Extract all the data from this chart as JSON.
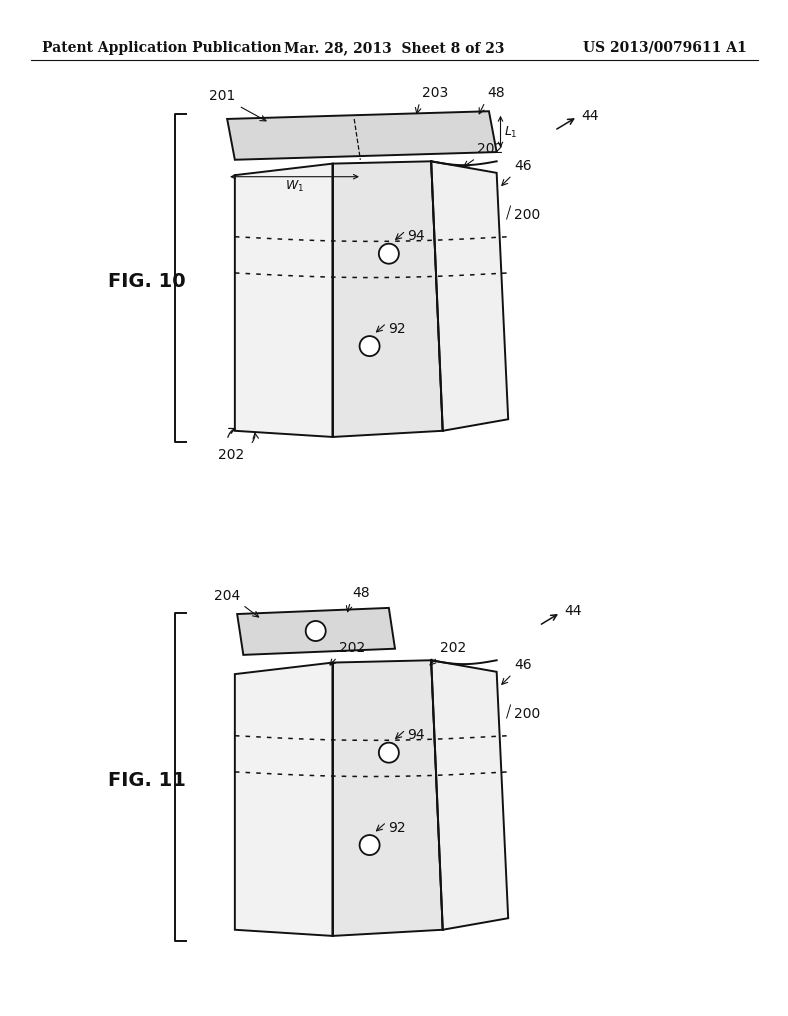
{
  "background_color": "#ffffff",
  "header_left": "Patent Application Publication",
  "header_mid": "Mar. 28, 2013  Sheet 8 of 23",
  "header_right": "US 2013/0079611 A1",
  "header_fontsize": 10,
  "fig10_label": "FIG. 10",
  "fig11_label": "FIG. 11"
}
